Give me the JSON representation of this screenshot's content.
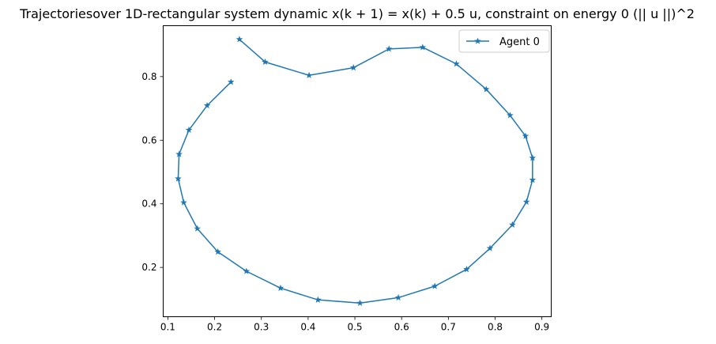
{
  "chart_data": {
    "type": "line",
    "title": "Trajectoriesover 1D-rectangular system dynamic x(k + 1) = x(k) + 0.5 u, constraint on energy 0 (|| u ||)^2",
    "xlabel": "",
    "ylabel": "",
    "xlim": [
      0.09,
      0.92
    ],
    "ylim": [
      0.045,
      0.96
    ],
    "xticks": [
      "0.1",
      "0.2",
      "0.3",
      "0.4",
      "0.5",
      "0.6",
      "0.7",
      "0.8",
      "0.9"
    ],
    "yticks": [
      "0.2",
      "0.4",
      "0.6",
      "0.8"
    ],
    "legend_position": "top-right",
    "grid": false,
    "series": [
      {
        "name": "Agent 0",
        "color": "#1f77b4",
        "marker": "star",
        "x": [
          0.253,
          0.308,
          0.402,
          0.497,
          0.573,
          0.645,
          0.717,
          0.781,
          0.832,
          0.865,
          0.88,
          0.88,
          0.867,
          0.837,
          0.789,
          0.739,
          0.671,
          0.593,
          0.511,
          0.421,
          0.341,
          0.268,
          0.207,
          0.163,
          0.134,
          0.122,
          0.124,
          0.145,
          0.184,
          0.235
        ],
        "y": [
          0.917,
          0.846,
          0.804,
          0.828,
          0.887,
          0.892,
          0.84,
          0.76,
          0.678,
          0.613,
          0.544,
          0.475,
          0.406,
          0.334,
          0.26,
          0.194,
          0.141,
          0.105,
          0.088,
          0.098,
          0.135,
          0.188,
          0.249,
          0.322,
          0.404,
          0.479,
          0.556,
          0.632,
          0.709,
          0.783
        ]
      }
    ]
  }
}
